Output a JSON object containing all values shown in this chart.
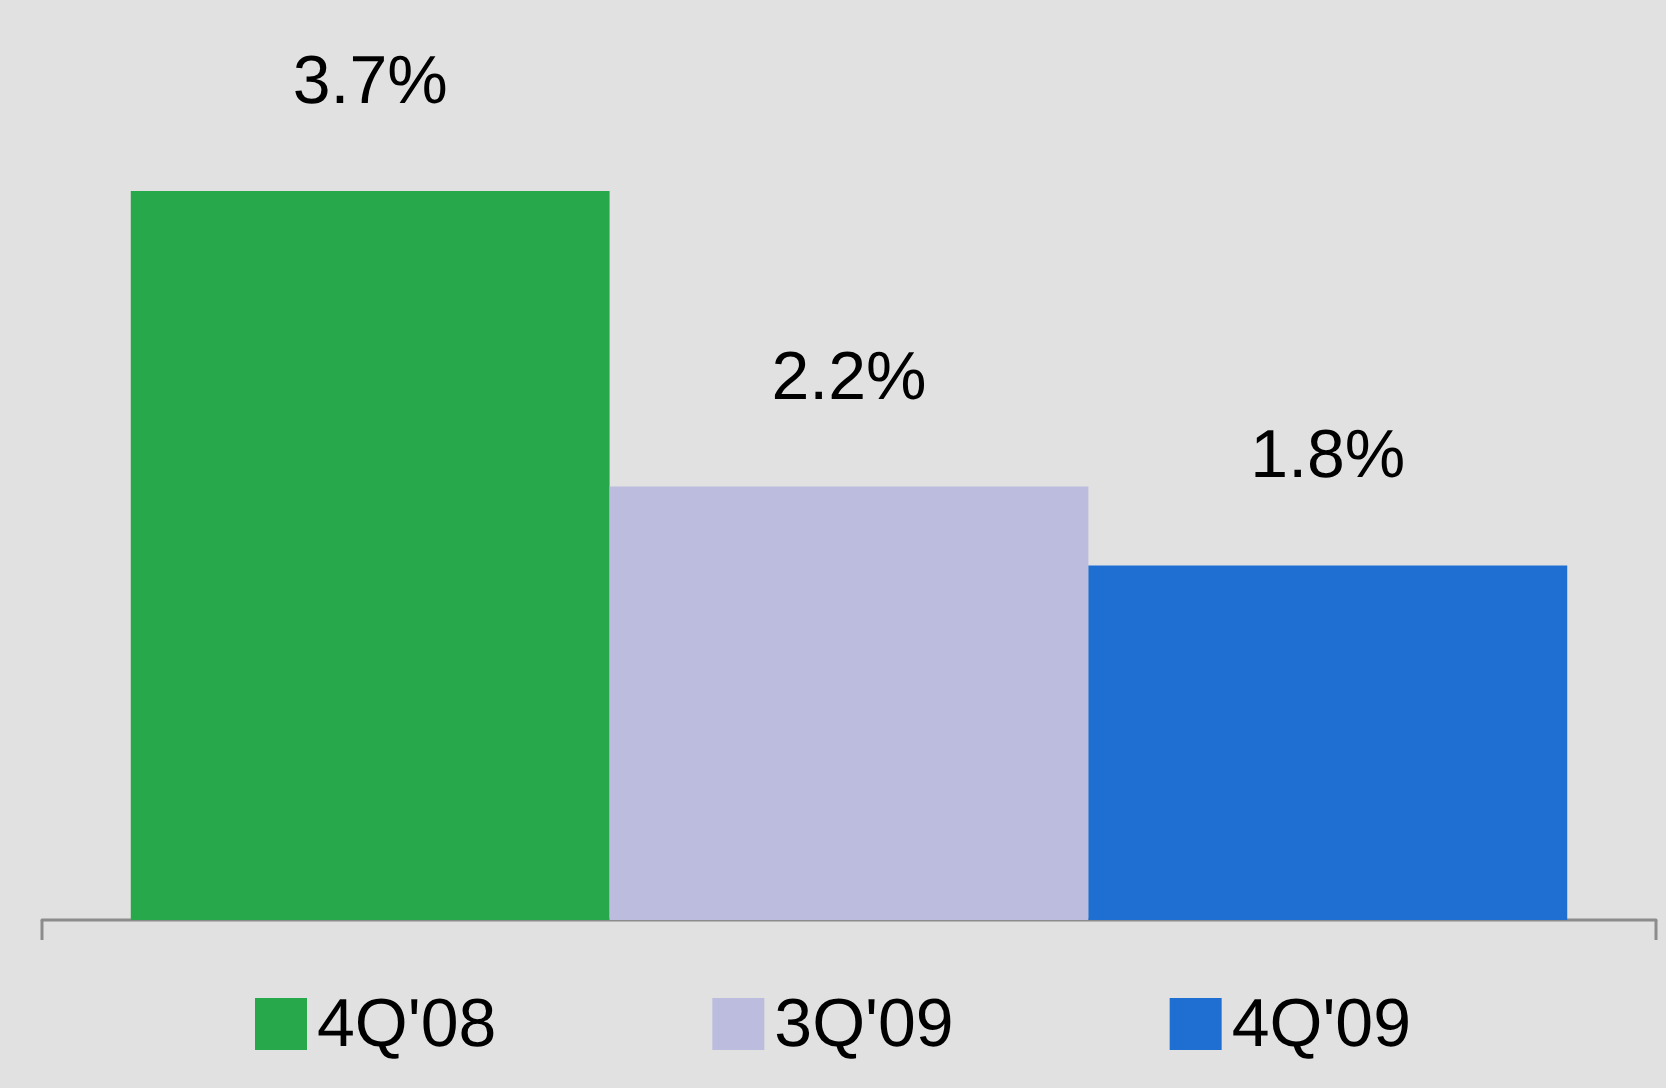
{
  "chart_data": {
    "type": "bar",
    "categories": [
      null
    ],
    "series": [
      {
        "name": "4Q'08",
        "color": "#27a84a",
        "values": [
          3.7
        ],
        "value_labels": [
          "3.7%"
        ]
      },
      {
        "name": "3Q'09",
        "color": "#bcbcdf",
        "values": [
          2.2
        ],
        "value_labels": [
          "2.2%"
        ]
      },
      {
        "name": "4Q'09",
        "color": "#1f6fd2",
        "values": [
          1.8
        ],
        "value_labels": [
          "1.8%"
        ]
      }
    ],
    "legend": "bottom"
  }
}
